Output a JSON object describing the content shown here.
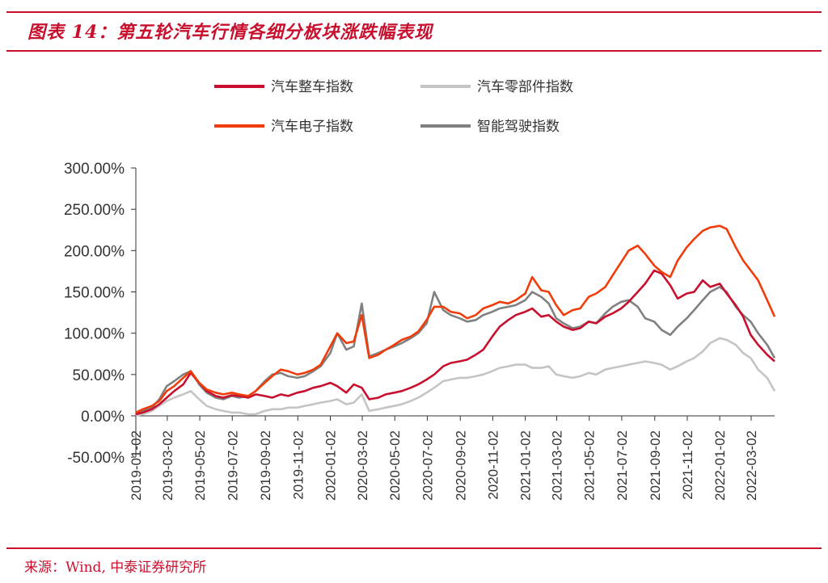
{
  "header": {
    "title": "图表 14：第五轮汽车行情各细分板块涨跌幅表现"
  },
  "footer": {
    "source": "来源：Wind, 中泰证券研究所"
  },
  "colors": {
    "accent": "#c8102e"
  },
  "chart_data": {
    "type": "line",
    "title": "",
    "xlabel": "",
    "ylabel": "",
    "ylim": [
      -50,
      300
    ],
    "y_ticks": [
      "-50.00%",
      "0.00%",
      "50.00%",
      "100.00%",
      "150.00%",
      "200.00%",
      "250.00%",
      "300.00%"
    ],
    "y_tick_values": [
      -50,
      0,
      50,
      100,
      150,
      200,
      250,
      300
    ],
    "x_ticks": [
      "2019-01-02",
      "2019-03-02",
      "2019-05-02",
      "2019-07-02",
      "2019-09-02",
      "2019-11-02",
      "2020-01-02",
      "2020-03-02",
      "2020-05-02",
      "2020-07-02",
      "2020-09-02",
      "2020-11-02",
      "2021-01-02",
      "2021-03-02",
      "2021-05-02",
      "2021-07-02",
      "2021-09-02",
      "2021-11-02",
      "2022-01-02",
      "2022-03-02"
    ],
    "legend_position": "top-center",
    "grid": false,
    "x": [
      "2019-01-02",
      "2019-01-15",
      "2019-02-01",
      "2019-02-15",
      "2019-03-01",
      "2019-03-15",
      "2019-04-01",
      "2019-04-15",
      "2019-05-01",
      "2019-05-15",
      "2019-06-01",
      "2019-06-15",
      "2019-07-01",
      "2019-07-15",
      "2019-08-01",
      "2019-08-15",
      "2019-09-01",
      "2019-09-15",
      "2019-10-01",
      "2019-10-15",
      "2019-11-01",
      "2019-11-15",
      "2019-12-01",
      "2019-12-15",
      "2020-01-02",
      "2020-01-15",
      "2020-02-01",
      "2020-02-15",
      "2020-03-01",
      "2020-03-15",
      "2020-04-01",
      "2020-04-15",
      "2020-05-01",
      "2020-05-15",
      "2020-06-01",
      "2020-06-15",
      "2020-07-01",
      "2020-07-15",
      "2020-08-01",
      "2020-08-15",
      "2020-09-01",
      "2020-09-15",
      "2020-10-01",
      "2020-10-15",
      "2020-11-01",
      "2020-11-15",
      "2020-12-01",
      "2020-12-15",
      "2021-01-02",
      "2021-01-15",
      "2021-02-01",
      "2021-02-15",
      "2021-03-01",
      "2021-03-15",
      "2021-04-01",
      "2021-04-15",
      "2021-05-01",
      "2021-05-15",
      "2021-06-01",
      "2021-06-15",
      "2021-07-01",
      "2021-07-15",
      "2021-08-01",
      "2021-08-15",
      "2021-09-01",
      "2021-09-15",
      "2021-10-01",
      "2021-10-15",
      "2021-11-01",
      "2021-11-15",
      "2021-12-01",
      "2021-12-15",
      "2022-01-02",
      "2022-01-15",
      "2022-02-01",
      "2022-02-15",
      "2022-03-01",
      "2022-03-15",
      "2022-04-01",
      "2022-04-15"
    ],
    "series": [
      {
        "name": "汽车整车指数",
        "color": "#c8102e",
        "values": [
          2,
          4,
          8,
          14,
          22,
          30,
          38,
          52,
          40,
          30,
          24,
          22,
          25,
          24,
          22,
          26,
          24,
          22,
          26,
          24,
          28,
          30,
          34,
          36,
          40,
          36,
          28,
          38,
          34,
          20,
          22,
          26,
          28,
          30,
          34,
          38,
          44,
          50,
          60,
          64,
          66,
          68,
          74,
          80,
          96,
          108,
          116,
          122,
          126,
          130,
          120,
          122,
          114,
          108,
          104,
          106,
          114,
          112,
          120,
          124,
          130,
          138,
          150,
          160,
          176,
          172,
          158,
          142,
          148,
          150,
          164,
          156,
          160,
          148,
          134,
          120,
          98,
          86,
          74,
          66
        ]
      },
      {
        "name": "汽车零部件指数",
        "color": "#c4c4c4",
        "values": [
          0,
          2,
          6,
          12,
          18,
          22,
          26,
          30,
          20,
          12,
          8,
          6,
          4,
          4,
          2,
          2,
          6,
          8,
          8,
          10,
          10,
          12,
          14,
          16,
          18,
          20,
          14,
          16,
          26,
          6,
          8,
          10,
          12,
          14,
          18,
          22,
          28,
          34,
          42,
          44,
          46,
          46,
          48,
          50,
          54,
          58,
          60,
          62,
          62,
          58,
          58,
          60,
          50,
          48,
          46,
          48,
          52,
          50,
          56,
          58,
          60,
          62,
          64,
          66,
          64,
          62,
          56,
          60,
          66,
          70,
          78,
          88,
          94,
          92,
          86,
          76,
          70,
          56,
          46,
          30
        ]
      },
      {
        "name": "汽车电子指数",
        "color": "#f03c0a",
        "values": [
          4,
          8,
          12,
          18,
          30,
          36,
          46,
          54,
          40,
          32,
          28,
          26,
          28,
          26,
          24,
          30,
          40,
          48,
          56,
          54,
          50,
          52,
          56,
          62,
          84,
          100,
          88,
          90,
          122,
          70,
          74,
          80,
          86,
          92,
          96,
          102,
          116,
          132,
          132,
          126,
          124,
          118,
          122,
          130,
          134,
          138,
          136,
          140,
          148,
          168,
          152,
          150,
          134,
          122,
          128,
          130,
          144,
          148,
          156,
          170,
          186,
          200,
          206,
          196,
          182,
          174,
          168,
          188,
          204,
          214,
          224,
          228,
          230,
          226,
          204,
          188,
          176,
          164,
          140,
          120
        ]
      },
      {
        "name": "智能驾驶指数",
        "color": "#808080",
        "values": [
          3,
          6,
          10,
          20,
          36,
          42,
          50,
          54,
          38,
          28,
          22,
          20,
          24,
          22,
          24,
          30,
          42,
          50,
          52,
          48,
          46,
          48,
          54,
          60,
          76,
          100,
          80,
          84,
          136,
          72,
          76,
          80,
          84,
          88,
          94,
          100,
          112,
          150,
          128,
          122,
          118,
          114,
          116,
          122,
          126,
          130,
          132,
          134,
          140,
          150,
          144,
          136,
          118,
          112,
          106,
          108,
          114,
          112,
          124,
          132,
          138,
          140,
          132,
          118,
          114,
          104,
          98,
          108,
          118,
          128,
          140,
          150,
          156,
          150,
          132,
          122,
          114,
          100,
          86,
          70
        ]
      }
    ]
  }
}
